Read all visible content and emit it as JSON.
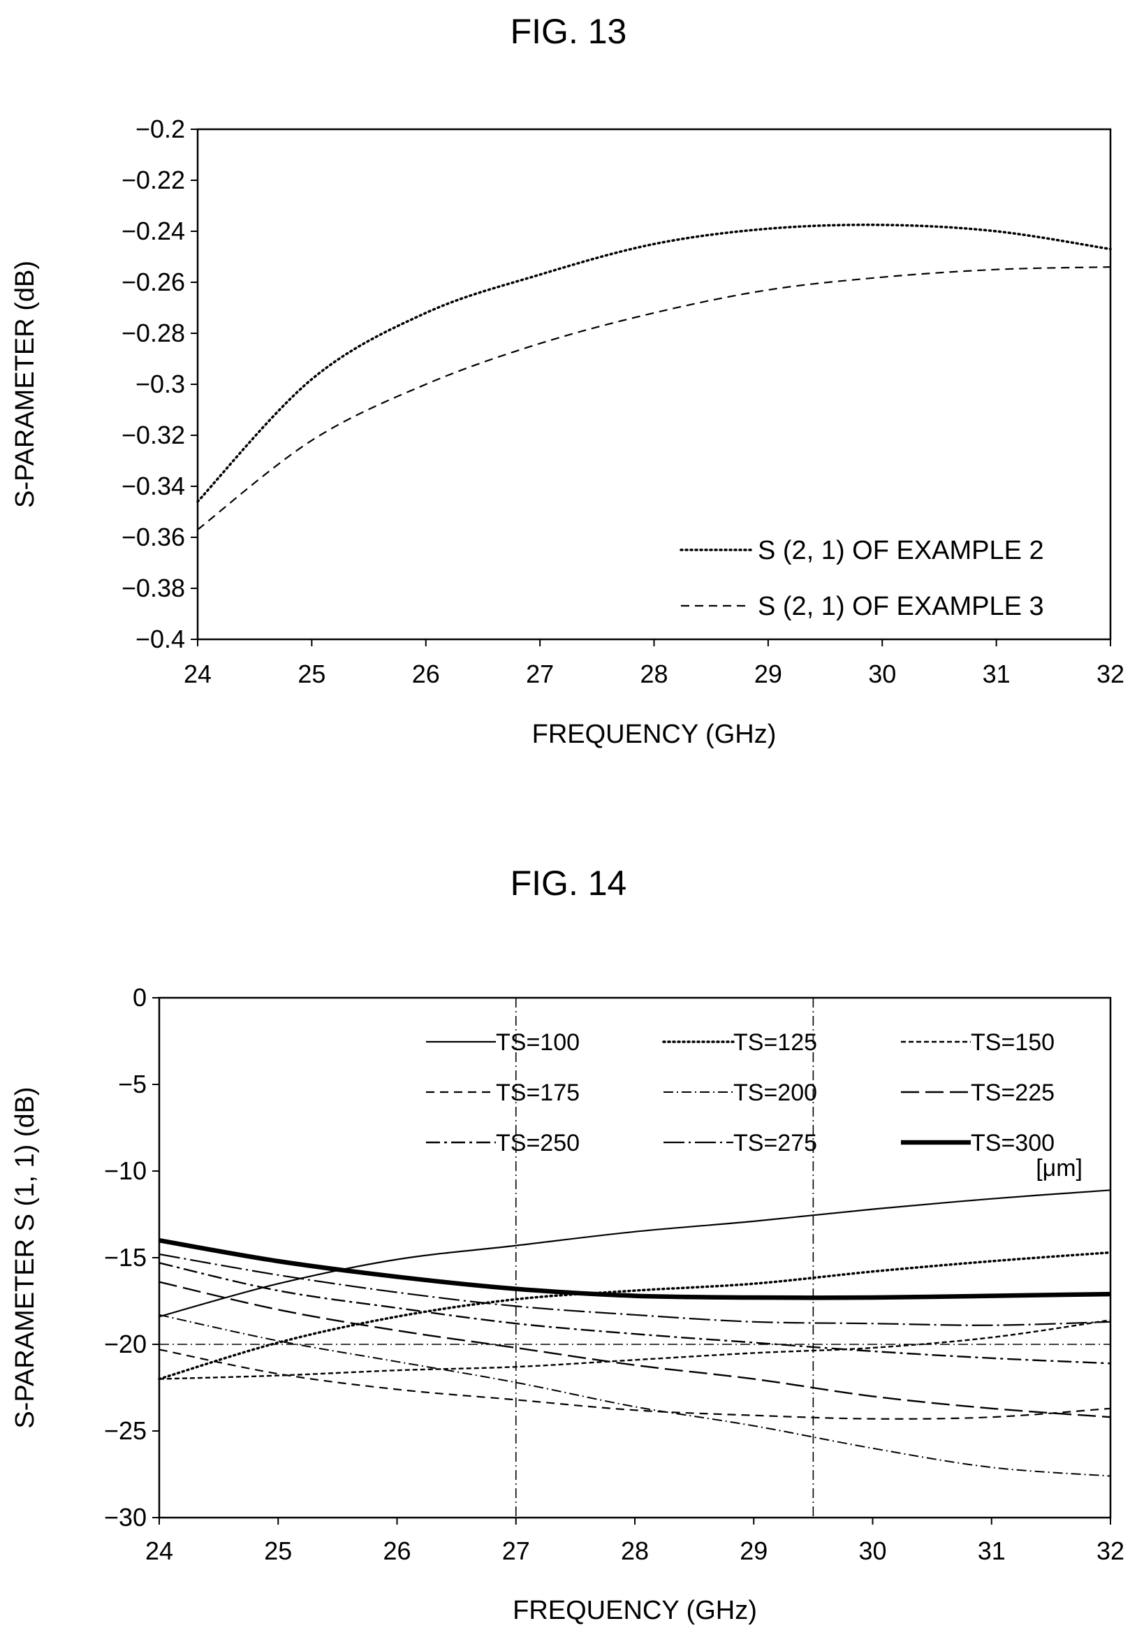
{
  "chart_data": [
    {
      "type": "line",
      "title": "FIG. 13",
      "xlabel": "FREQUENCY (GHz)",
      "ylabel": "S-PARAMETER (dB)",
      "xlim": [
        24,
        32
      ],
      "ylim": [
        -0.4,
        -0.2
      ],
      "x_ticks": [
        "24",
        "25",
        "26",
        "27",
        "28",
        "29",
        "30",
        "31",
        "32"
      ],
      "y_ticks": [
        "-0.2",
        "-0.22",
        "-0.24",
        "-0.26",
        "-0.28",
        "-0.3",
        "-0.32",
        "-0.34",
        "-0.36",
        "-0.38",
        "-0.4"
      ],
      "grid": false,
      "legend_position": "bottom-right",
      "x": [
        24,
        25,
        26,
        27,
        28,
        29,
        30,
        31,
        32
      ],
      "series": [
        {
          "name": "S (2, 1) OF EXAMPLE 2",
          "style": "dotted",
          "values": [
            -0.346,
            -0.298,
            -0.272,
            -0.257,
            -0.245,
            -0.239,
            -0.2375,
            -0.24,
            -0.247
          ]
        },
        {
          "name": "S (2, 1) OF EXAMPLE 3",
          "style": "dashed",
          "values": [
            -0.357,
            -0.322,
            -0.3,
            -0.284,
            -0.272,
            -0.263,
            -0.258,
            -0.255,
            -0.254
          ]
        }
      ]
    },
    {
      "type": "line",
      "title": "FIG. 14",
      "xlabel": "FREQUENCY (GHz)",
      "ylabel": "S-PARAMETER S (1, 1) (dB)",
      "xlim": [
        24,
        32
      ],
      "ylim": [
        -30,
        0
      ],
      "x_ticks": [
        "24",
        "25",
        "26",
        "27",
        "28",
        "29",
        "30",
        "31",
        "32"
      ],
      "y_ticks": [
        "0",
        "-5",
        "-10",
        "-15",
        "-20",
        "-25",
        "-30"
      ],
      "grid": false,
      "legend_position": "top",
      "legend_unit": "[μm]",
      "reference_lines": {
        "vertical_x": [
          27,
          29.5
        ],
        "horizontal_y": [
          -20
        ]
      },
      "x": [
        24,
        25,
        26,
        27,
        28,
        29,
        30,
        31,
        32
      ],
      "series": [
        {
          "name": "TS=100",
          "style": "solid",
          "values": [
            -18.4,
            -16.5,
            -15.1,
            -14.3,
            -13.5,
            -12.9,
            -12.2,
            -11.6,
            -11.1
          ]
        },
        {
          "name": "TS=125",
          "style": "dotted",
          "values": [
            -22.0,
            -19.9,
            -18.4,
            -17.4,
            -16.9,
            -16.5,
            -15.8,
            -15.2,
            -14.7
          ]
        },
        {
          "name": "TS=150",
          "style": "dash-short",
          "values": [
            -22.0,
            -21.8,
            -21.5,
            -21.3,
            -20.9,
            -20.5,
            -20.2,
            -19.6,
            -18.6
          ]
        },
        {
          "name": "TS=175",
          "style": "dashed",
          "values": [
            -20.3,
            -21.7,
            -22.6,
            -23.2,
            -23.8,
            -24.1,
            -24.3,
            -24.2,
            -23.7
          ]
        },
        {
          "name": "TS=200",
          "style": "dash-dot",
          "values": [
            -18.3,
            -19.8,
            -21.0,
            -22.2,
            -23.6,
            -24.7,
            -26.0,
            -27.1,
            -27.6
          ]
        },
        {
          "name": "TS=225",
          "style": "long-dash",
          "values": [
            -16.4,
            -18.0,
            -19.2,
            -20.2,
            -21.2,
            -22.0,
            -23.0,
            -23.7,
            -24.2
          ]
        },
        {
          "name": "TS=250",
          "style": "dash-dot-long",
          "values": [
            -15.3,
            -16.9,
            -17.9,
            -18.8,
            -19.4,
            -19.9,
            -20.4,
            -20.8,
            -21.1
          ]
        },
        {
          "name": "TS=275",
          "style": "dash-dot-long2",
          "values": [
            -14.8,
            -16.0,
            -17.0,
            -17.8,
            -18.3,
            -18.7,
            -18.8,
            -18.9,
            -18.7
          ]
        },
        {
          "name": "TS=300",
          "style": "thick-solid",
          "values": [
            -14.0,
            -15.2,
            -16.1,
            -16.8,
            -17.2,
            -17.3,
            -17.3,
            -17.2,
            -17.1
          ]
        }
      ]
    }
  ]
}
